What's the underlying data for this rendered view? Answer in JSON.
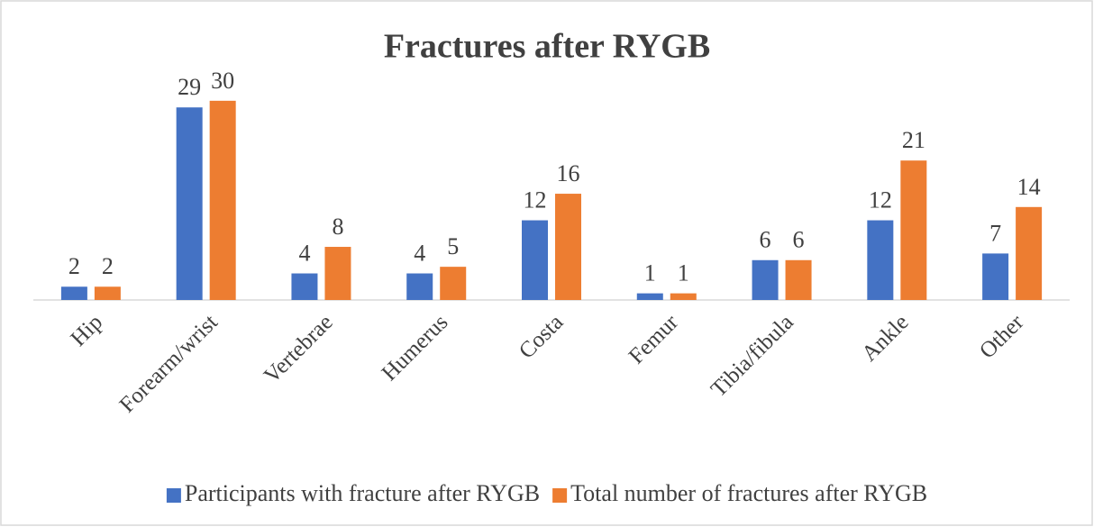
{
  "chart_data": {
    "type": "bar",
    "title": "Fractures after RYGB",
    "categories": [
      "Hip",
      "Forearm/wrist",
      "Vertebrae",
      "Humerus",
      "Costa",
      "Femur",
      "Tibia/fibula",
      "Ankle",
      "Other"
    ],
    "series": [
      {
        "name": "Participants with fracture after RYGB",
        "color": "#4472c4",
        "values": [
          2,
          29,
          4,
          4,
          12,
          1,
          6,
          12,
          7
        ]
      },
      {
        "name": "Total number of fractures after RYGB",
        "color": "#ed7d31",
        "values": [
          2,
          30,
          8,
          5,
          16,
          1,
          6,
          21,
          14
        ]
      }
    ],
    "ylim": [
      0,
      35
    ],
    "legend": "bottom"
  }
}
